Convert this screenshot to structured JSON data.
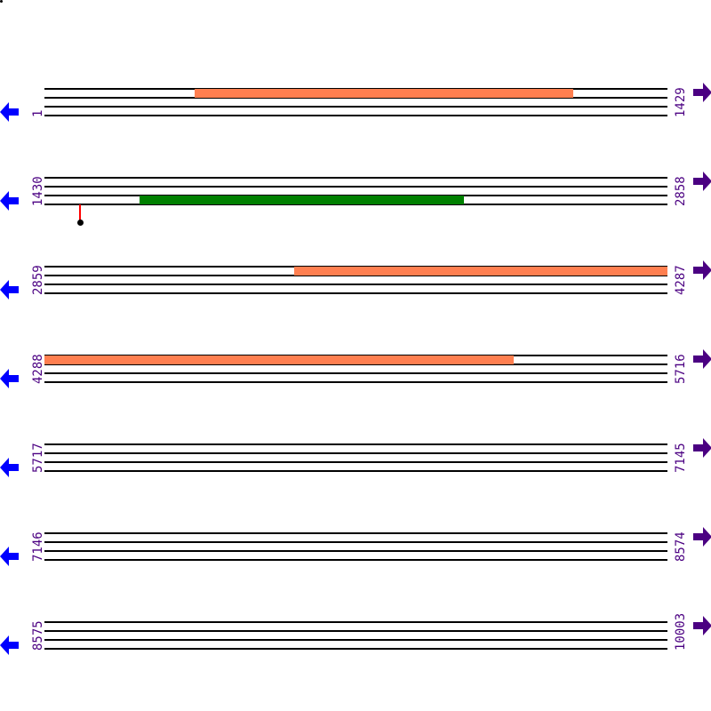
{
  "sequence_length": 10003,
  "bases_per_row": 1429,
  "colors": {
    "label": "#4b0082",
    "left_arrow": "#0000ff",
    "right_arrow": "#4b0082",
    "marker_stem": "#ff0000",
    "marker_dot": "#000000"
  },
  "rows": [
    {
      "start": "1",
      "end": "1429"
    },
    {
      "start": "1430",
      "end": "2858"
    },
    {
      "start": "2859",
      "end": "4287"
    },
    {
      "start": "4288",
      "end": "5716"
    },
    {
      "start": "5717",
      "end": "7145"
    },
    {
      "start": "7146",
      "end": "8574"
    },
    {
      "start": "8575",
      "end": "10003"
    }
  ],
  "features": [
    {
      "row": 0,
      "track": 0,
      "from": 346,
      "to": 1213,
      "color": "#ff7f50"
    },
    {
      "row": 1,
      "track": 2,
      "from": 1648,
      "to": 2391,
      "color": "#008000"
    },
    {
      "row": 2,
      "track": 0,
      "from": 3433,
      "to": 4287,
      "color": "#ff7f50"
    },
    {
      "row": 3,
      "track": 0,
      "from": 4288,
      "to": 5364,
      "color": "#ff7f50"
    }
  ],
  "markers": [
    {
      "row": 1,
      "position": 1512
    }
  ]
}
